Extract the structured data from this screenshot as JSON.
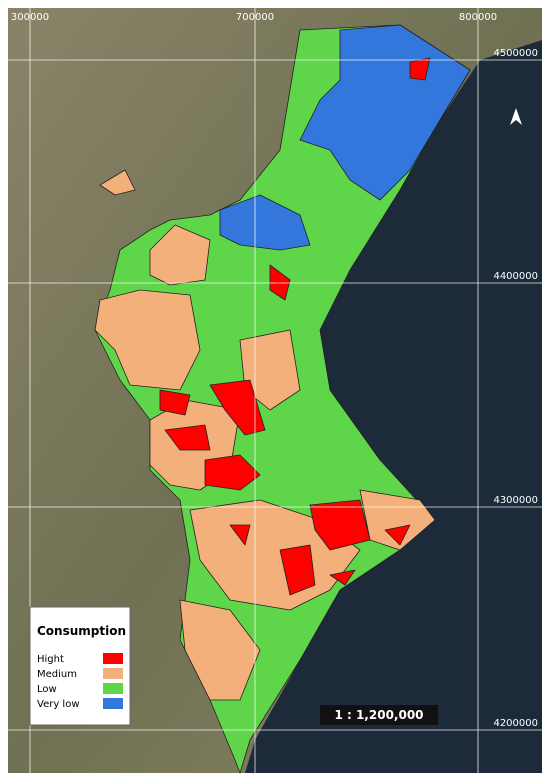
{
  "grid": {
    "x_labels": [
      "300000",
      "700000",
      "800000"
    ],
    "y_labels": [
      "4500000",
      "4400000",
      "4300000",
      "4200000"
    ]
  },
  "legend": {
    "title": "Consumption",
    "items": [
      {
        "label": "Hight",
        "color": "#ff0000"
      },
      {
        "label": "Medium",
        "color": "#f4b07a"
      },
      {
        "label": "Low",
        "color": "#5fd54a"
      },
      {
        "label": "Very low",
        "color": "#3377dd"
      }
    ]
  },
  "scale": "1 : 1,200,000"
}
